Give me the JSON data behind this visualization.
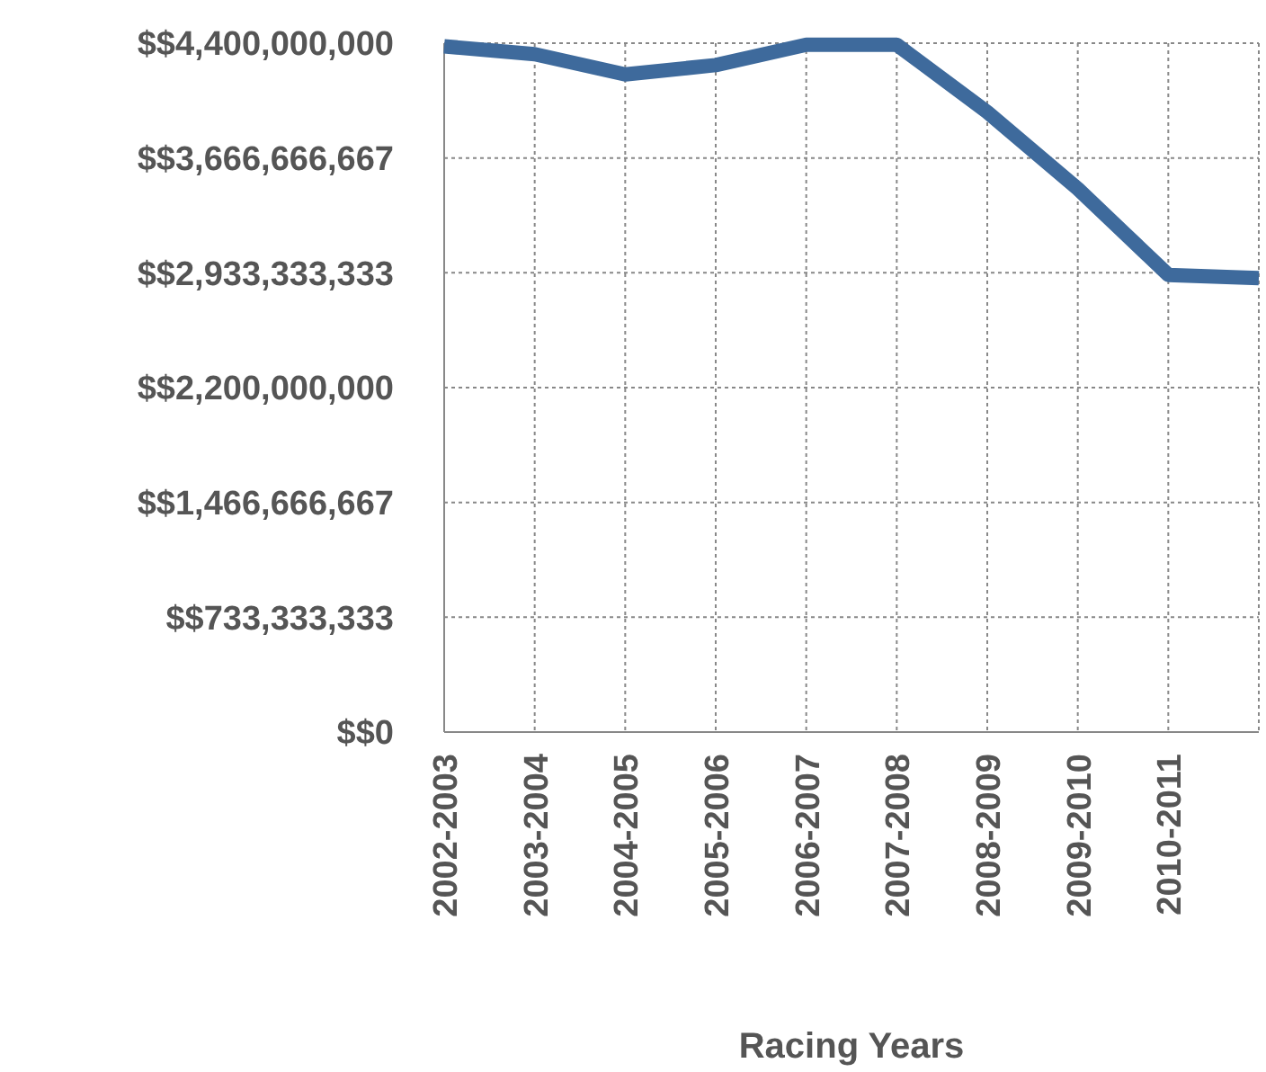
{
  "chart_data": {
    "type": "line",
    "xlabel": "Racing Years",
    "categories": [
      "2002-2003",
      "2003-2004",
      "2004-2005",
      "2005-2006",
      "2006-2007",
      "2007-2008",
      "2008-2009",
      "2009-2010",
      "2010-2011",
      null
    ],
    "series": [
      {
        "color": "#3e6a9c",
        "values": [
          4380000000,
          4330000000,
          4200000000,
          4260000000,
          4390000000,
          4390000000,
          3960000000,
          3470000000,
          2920000000,
          2900000000
        ]
      }
    ],
    "ylim": [
      0,
      4400000000
    ],
    "yticks": [
      {
        "value": 0,
        "label": "$$0"
      },
      {
        "value": 733333333,
        "label": "$$733,333,333"
      },
      {
        "value": 1466666667,
        "label": "$$1,466,666,667"
      },
      {
        "value": 2200000000,
        "label": "$$2,200,000,000"
      },
      {
        "value": 2933333333,
        "label": "$$2,933,333,333"
      },
      {
        "value": 3666666667,
        "label": "$$3,666,666,667"
      },
      {
        "value": 4400000000,
        "label": "$$4,400,000,000"
      }
    ],
    "grid": true,
    "marker": "none",
    "line_style": "solid"
  }
}
